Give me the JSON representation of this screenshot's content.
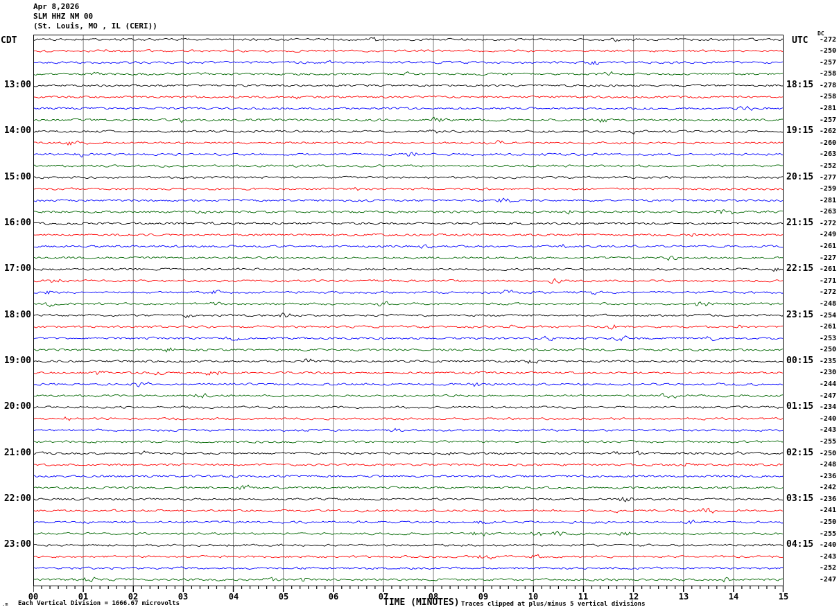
{
  "corner_labels": {
    "left": "CDT",
    "right": "UTC"
  },
  "chart_data": {
    "type": "line",
    "title_lines": [
      "Apr 8,2026",
      "SLM HHZ NM 00",
      "(St. Louis, MO , IL (CERI))"
    ],
    "xlabel": "TIME (MINUTES)",
    "x_range_minutes": [
      0,
      15
    ],
    "x_tick_labels": [
      "00",
      "01",
      "02",
      "03",
      "04",
      "05",
      "06",
      "07",
      "08",
      "09",
      "10",
      "11",
      "12",
      "13",
      "14",
      "15"
    ],
    "x_minor_ticks_per_minute": 6,
    "num_traces": 48,
    "minutes_per_trace": 15,
    "traces_per_hour": 4,
    "trace_color_cycle_names": [
      "black",
      "red",
      "blue",
      "green"
    ],
    "trace_color_cycle_hex": [
      "#000000",
      "#ff0000",
      "#0000ff",
      "#006600"
    ],
    "grid_color": "#808080",
    "grid": true,
    "left_hour_labels_cdt": [
      "13:00",
      "14:00",
      "15:00",
      "16:00",
      "17:00",
      "18:00",
      "19:00",
      "20:00",
      "21:00",
      "22:00",
      "23:00"
    ],
    "right_hour_labels_utc": [
      "18:15",
      "19:15",
      "20:15",
      "21:15",
      "22:15",
      "23:15",
      "00:15",
      "01:15",
      "02:15",
      "03:15",
      "04:15"
    ],
    "hour_label_first_trace_index": 4,
    "hour_label_trace_step": 4,
    "dc_header": "DC",
    "dc_offsets": [
      -272,
      -250,
      -257,
      -258,
      -278,
      -258,
      -281,
      -257,
      -262,
      -260,
      -263,
      -252,
      -277,
      -259,
      -281,
      -263,
      -272,
      -249,
      -261,
      -227,
      -261,
      -271,
      -272,
      -248,
      -254,
      -261,
      -253,
      -250,
      -235,
      -230,
      -244,
      -247,
      -234,
      -240,
      -243,
      -255,
      -250,
      -248,
      -236,
      -242,
      -236,
      -241,
      -250,
      -255,
      -240,
      -243,
      -252,
      -247
    ]
  },
  "footer": {
    "scale_note": "Each Vertical Division = 1666.67 microvolts",
    "clip_note": "Traces clipped at plus/minus 5 vertical divisions",
    "watermark": ".m"
  }
}
